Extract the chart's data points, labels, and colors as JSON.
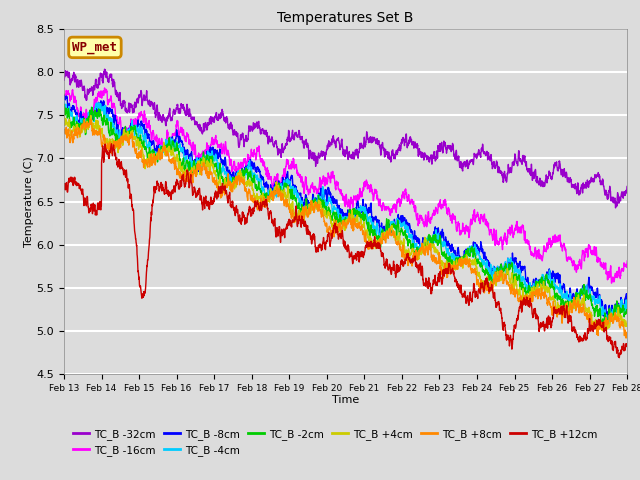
{
  "title": "Temperatures Set B",
  "xlabel": "Time",
  "ylabel": "Temperature (C)",
  "ylim": [
    4.5,
    8.5
  ],
  "xlim_days": [
    13,
    28
  ],
  "plot_bg_color": "#dcdcdc",
  "fig_bg_color": "#dcdcdc",
  "grid_color": "#ffffff",
  "series": {
    "TC_B -32cm": {
      "color": "#9900cc",
      "lw": 1.0
    },
    "TC_B -16cm": {
      "color": "#ff00ff",
      "lw": 1.0
    },
    "TC_B -8cm": {
      "color": "#0000ff",
      "lw": 1.0
    },
    "TC_B -4cm": {
      "color": "#00ccff",
      "lw": 1.0
    },
    "TC_B -2cm": {
      "color": "#00cc00",
      "lw": 1.0
    },
    "TC_B +4cm": {
      "color": "#cccc00",
      "lw": 1.0
    },
    "TC_B +8cm": {
      "color": "#ff8800",
      "lw": 1.0
    },
    "TC_B +12cm": {
      "color": "#cc0000",
      "lw": 1.0
    }
  },
  "wp_met_box": {
    "text": "WP_met",
    "facecolor": "#ffffaa",
    "edgecolor": "#cc8800",
    "textcolor": "#880000"
  },
  "xtick_labels": [
    "Feb 13",
    "Feb 14",
    "Feb 15",
    "Feb 16",
    "Feb 17",
    "Feb 18",
    "Feb 19",
    "Feb 20",
    "Feb 21",
    "Feb 22",
    "Feb 23",
    "Feb 24",
    "Feb 25",
    "Feb 26",
    "Feb 27",
    "Feb 28"
  ],
  "ytick_labels": [
    4.5,
    5.0,
    5.5,
    6.0,
    6.5,
    7.0,
    7.5,
    8.0,
    8.5
  ],
  "legend_order": [
    "TC_B -32cm",
    "TC_B -16cm",
    "TC_B -8cm",
    "TC_B -4cm",
    "TC_B -2cm",
    "TC_B +4cm",
    "TC_B +8cm",
    "TC_B +12cm"
  ]
}
